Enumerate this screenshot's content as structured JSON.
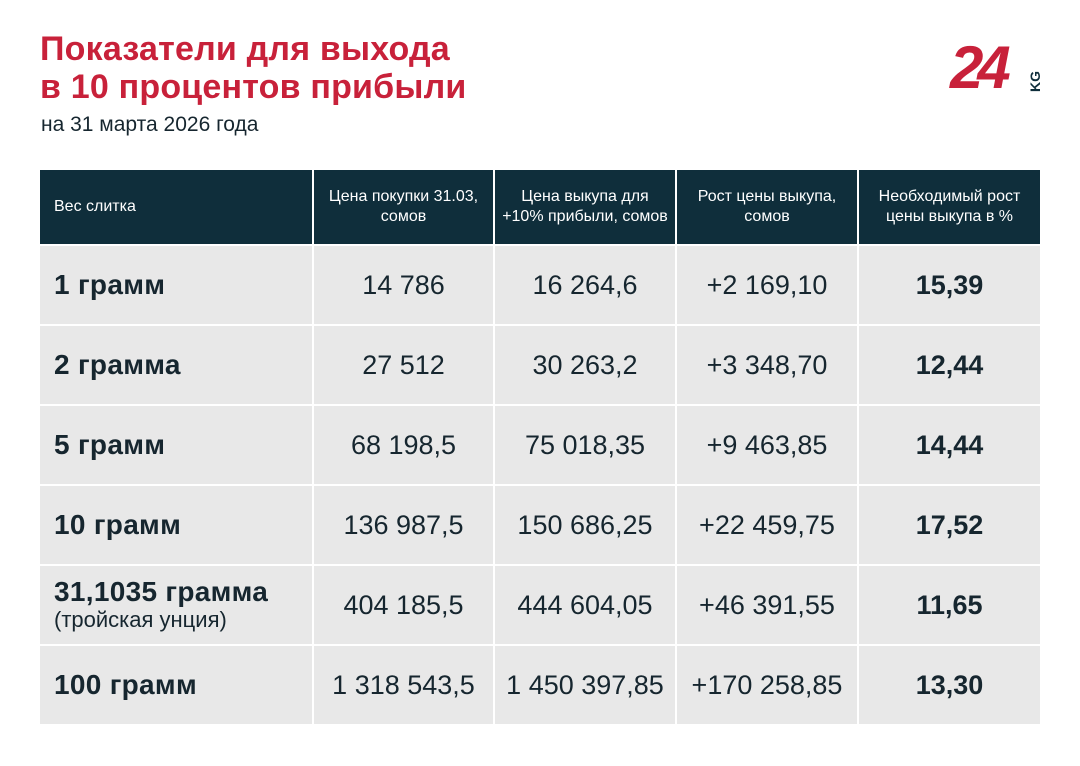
{
  "header": {
    "title_line1": "Показатели для выхода",
    "title_line2": "в 10 процентов прибыли",
    "subtitle": "на 31 марта 2026 года"
  },
  "logo": {
    "mark": "24",
    "suffix": "KG"
  },
  "colors": {
    "accent": "#c8213a",
    "header_bg": "#0f2e3b",
    "row_bg": "#e8e8e8",
    "text": "#16262f"
  },
  "chart_data": {
    "type": "table",
    "columns": [
      "Вес слитка",
      "Цена покупки 31.03, сомов",
      "Цена выкупа для +10% прибыли, сомов",
      "Рост цены выкупа, сомов",
      "Необходимый рост цены выкупа в %"
    ],
    "rows": [
      {
        "weight": "1 грамм",
        "note": "",
        "buy": "14 786",
        "buyback": "16 264,6",
        "growth": "+2 169,10",
        "pct": "15,39"
      },
      {
        "weight": "2 грамма",
        "note": "",
        "buy": "27 512",
        "buyback": "30 263,2",
        "growth": "+3 348,70",
        "pct": "12,44"
      },
      {
        "weight": "5 грамм",
        "note": "",
        "buy": "68 198,5",
        "buyback": "75 018,35",
        "growth": "+9 463,85",
        "pct": "14,44"
      },
      {
        "weight": "10 грамм",
        "note": "",
        "buy": "136 987,5",
        "buyback": "150 686,25",
        "growth": "+22 459,75",
        "pct": "17,52"
      },
      {
        "weight": "31,1035 грамма",
        "note": "(тройская унция)",
        "buy": "404 185,5",
        "buyback": "444 604,05",
        "growth": "+46 391,55",
        "pct": "11,65"
      },
      {
        "weight": "100 грамм",
        "note": "",
        "buy": "1 318 543,5",
        "buyback": "1 450 397,85",
        "growth": "+170 258,85",
        "pct": "13,30"
      }
    ]
  }
}
